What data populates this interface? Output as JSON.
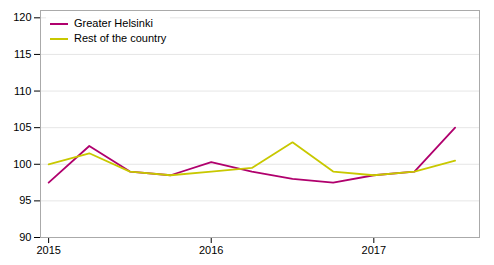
{
  "chart_data": {
    "type": "line",
    "x": [
      2015.0,
      2015.25,
      2015.5,
      2015.75,
      2016.0,
      2016.25,
      2016.5,
      2016.75,
      2017.0,
      2017.25,
      2017.5
    ],
    "series": [
      {
        "name": "Greater Helsinki",
        "color": "#b0006d",
        "values": [
          97.5,
          102.5,
          99.0,
          98.5,
          100.3,
          99.0,
          98.0,
          97.5,
          98.5,
          99.0,
          105.0
        ]
      },
      {
        "name": "Rest of the country",
        "color": "#c8c800",
        "values": [
          100.0,
          101.5,
          99.0,
          98.5,
          99.0,
          99.5,
          103.0,
          99.0,
          98.5,
          99.0,
          100.5
        ]
      }
    ],
    "xlim": [
      2014.95,
      2017.65
    ],
    "xticks": [
      2015,
      2016,
      2017
    ],
    "ylim": [
      90,
      121
    ],
    "yticks": [
      90,
      95,
      100,
      105,
      110,
      115,
      120
    ],
    "grid": true,
    "legend": "upper left"
  }
}
